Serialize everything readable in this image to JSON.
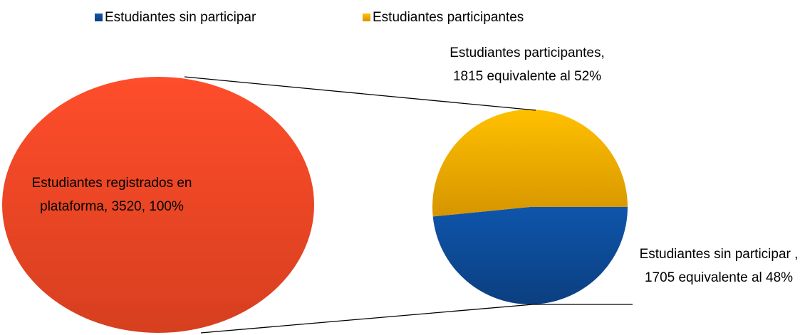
{
  "chart_data": {
    "type": "pie-of-pie",
    "legend": "top",
    "primary": {
      "values": [
        3520
      ],
      "value_labels": [
        "Estudiantes registrados en plataforma, 3520, 100%"
      ],
      "color": "#f24a28"
    },
    "secondary": {
      "categories": [
        "Estudiantes sin participar",
        "Estudiantes participantes"
      ],
      "values": [
        1705,
        1815
      ],
      "colors": [
        "#0e4c9a",
        "#ffc000"
      ],
      "value_labels": [
        "Estudiantes sin participar , 1705 equivalente al 48%",
        "Estudiantes participantes, 1815 equivalente al 52%"
      ]
    }
  }
}
